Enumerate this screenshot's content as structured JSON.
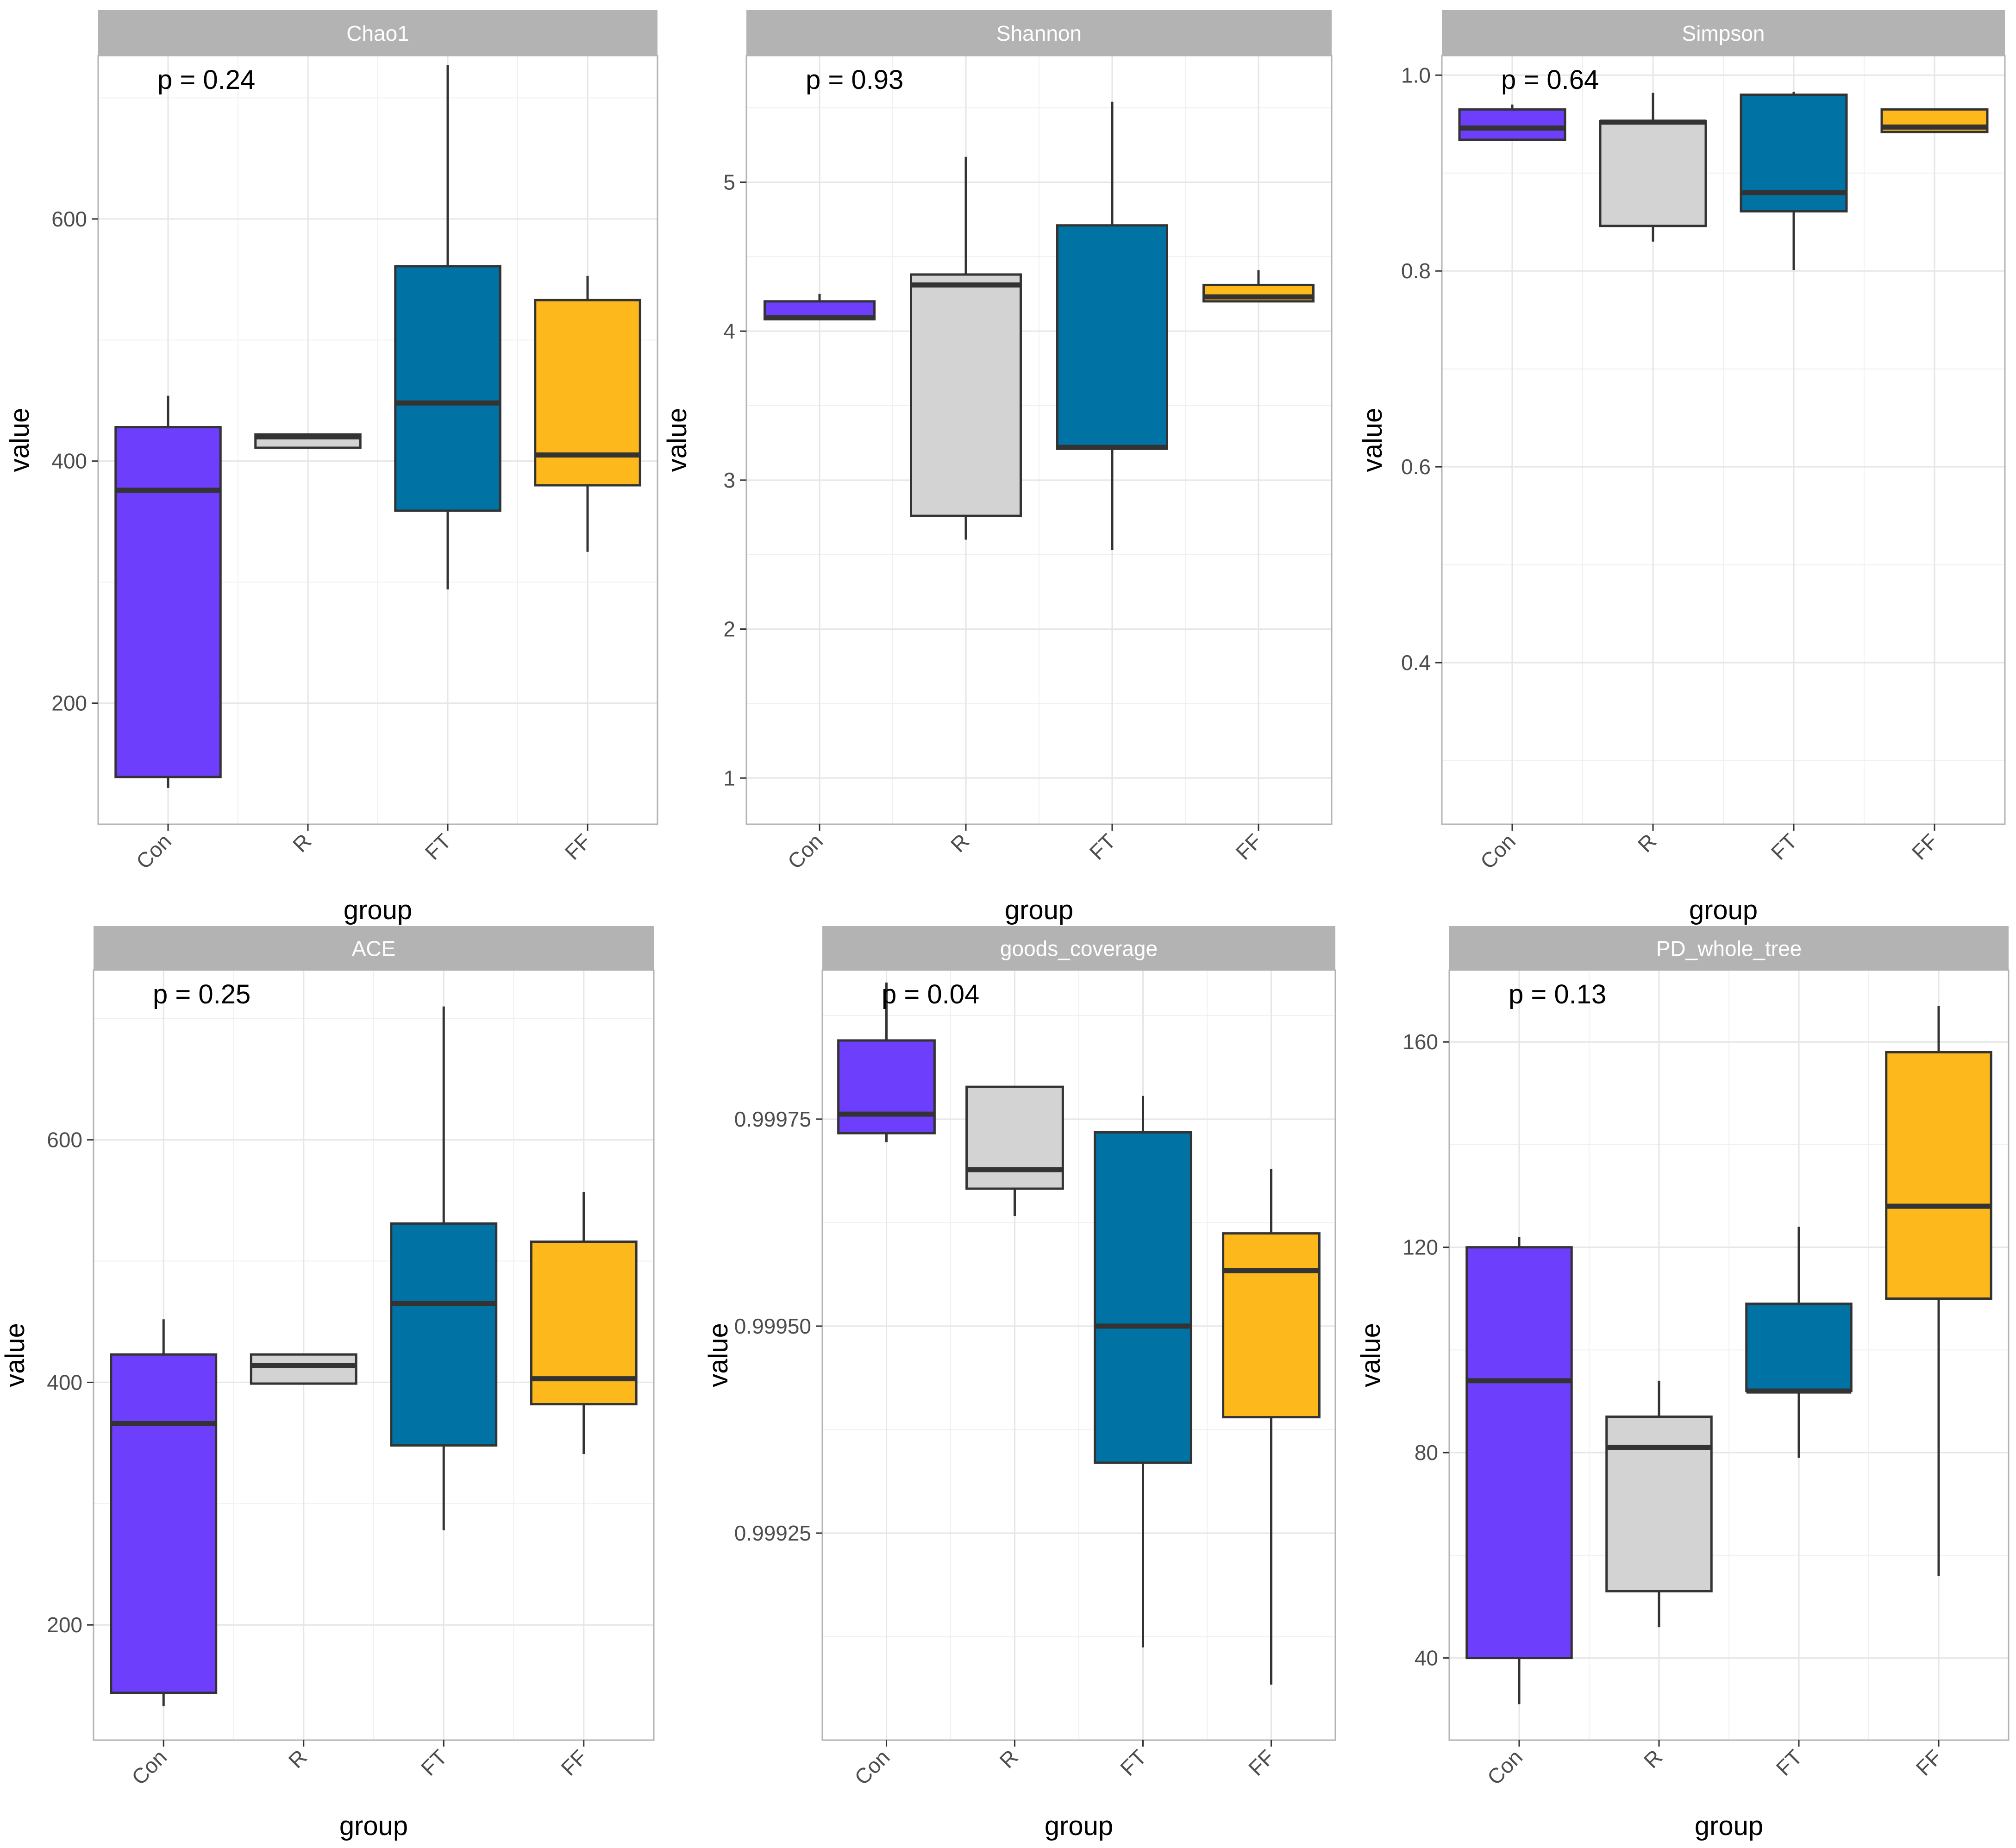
{
  "colors": {
    "Con": "#6d3ffd",
    "R": "#d3d3d3",
    "FT": "#0072a3",
    "FF": "#fdb81b",
    "strip_bg": "#b3b3b3",
    "strip_text": "#ffffff",
    "box_line": "#333333",
    "grid": "#e6e6e6",
    "panel_border": "#b3b3b3"
  },
  "chart_data": [
    {
      "type": "box",
      "title": "Chao1",
      "p_label": "p = 0.24",
      "xlabel": "group",
      "ylabel": "value",
      "categories": [
        "Con",
        "R",
        "FT",
        "FF"
      ],
      "ylim": [
        100,
        735
      ],
      "yticks": [
        200,
        400,
        600
      ],
      "ytick_labels": [
        "200",
        "400",
        "600"
      ],
      "boxes": [
        {
          "group": "Con",
          "min": 130,
          "q1": 139,
          "median": 376,
          "q3": 428,
          "max": 454
        },
        {
          "group": "R",
          "min": 411,
          "q1": 411,
          "median": 420,
          "q3": 422,
          "max": 422
        },
        {
          "group": "FT",
          "min": 294,
          "q1": 359,
          "median": 448,
          "q3": 561,
          "max": 727
        },
        {
          "group": "FF",
          "min": 325,
          "q1": 380,
          "median": 405,
          "q3": 533,
          "max": 553
        }
      ]
    },
    {
      "type": "box",
      "title": "Shannon",
      "p_label": "p = 0.93",
      "xlabel": "group",
      "ylabel": "value",
      "categories": [
        "Con",
        "R",
        "FT",
        "FF"
      ],
      "ylim": [
        0.69,
        5.85
      ],
      "yticks": [
        1,
        2,
        3,
        4,
        5
      ],
      "ytick_labels": [
        "1",
        "2",
        "3",
        "4",
        "5"
      ],
      "boxes": [
        {
          "group": "Con",
          "min": 4.08,
          "q1": 4.08,
          "median": 4.09,
          "q3": 4.2,
          "max": 4.25
        },
        {
          "group": "R",
          "min": 2.6,
          "q1": 2.76,
          "median": 4.31,
          "q3": 4.38,
          "max": 5.17
        },
        {
          "group": "FT",
          "min": 2.53,
          "q1": 3.21,
          "median": 3.22,
          "q3": 4.71,
          "max": 5.54
        },
        {
          "group": "FF",
          "min": 4.2,
          "q1": 4.2,
          "median": 4.23,
          "q3": 4.31,
          "max": 4.41
        }
      ]
    },
    {
      "type": "box",
      "title": "Simpson",
      "p_label": "p = 0.64",
      "xlabel": "group",
      "ylabel": "value",
      "categories": [
        "Con",
        "R",
        "FT",
        "FF"
      ],
      "ylim": [
        0.235,
        1.02
      ],
      "yticks": [
        0.4,
        0.6,
        0.8,
        1.0
      ],
      "ytick_labels": [
        "0.4",
        "0.6",
        "0.8",
        "1.0"
      ],
      "boxes": [
        {
          "group": "Con",
          "min": 0.934,
          "q1": 0.934,
          "median": 0.946,
          "q3": 0.965,
          "max": 0.97
        },
        {
          "group": "R",
          "min": 0.83,
          "q1": 0.846,
          "median": 0.952,
          "q3": 0.953,
          "max": 0.982
        },
        {
          "group": "FT",
          "min": 0.801,
          "q1": 0.861,
          "median": 0.88,
          "q3": 0.98,
          "max": 0.983
        },
        {
          "group": "FF",
          "min": 0.942,
          "q1": 0.942,
          "median": 0.947,
          "q3": 0.965,
          "max": 0.965
        }
      ]
    },
    {
      "type": "box",
      "title": "ACE",
      "p_label": "p = 0.25",
      "xlabel": "group",
      "ylabel": "value",
      "categories": [
        "Con",
        "R",
        "FT",
        "FF"
      ],
      "ylim": [
        105,
        740
      ],
      "yticks": [
        200,
        400,
        600
      ],
      "ytick_labels": [
        "200",
        "400",
        "600"
      ],
      "boxes": [
        {
          "group": "Con",
          "min": 133,
          "q1": 144,
          "median": 366,
          "q3": 423,
          "max": 452
        },
        {
          "group": "R",
          "min": 399,
          "q1": 399,
          "median": 414,
          "q3": 423,
          "max": 423
        },
        {
          "group": "FT",
          "min": 278,
          "q1": 348,
          "median": 465,
          "q3": 531,
          "max": 710
        },
        {
          "group": "FF",
          "min": 341,
          "q1": 382,
          "median": 403,
          "q3": 516,
          "max": 557
        }
      ]
    },
    {
      "type": "box",
      "title": "goods_coverage",
      "p_label": "p = 0.04",
      "xlabel": "group",
      "ylabel": "value",
      "categories": [
        "Con",
        "R",
        "FT",
        "FF"
      ],
      "ylim": [
        0.999,
        0.99993
      ],
      "yticks": [
        0.99925,
        0.9995,
        0.99975
      ],
      "ytick_labels": [
        "0.99925",
        "0.99950",
        "0.99975"
      ],
      "boxes": [
        {
          "group": "Con",
          "min": 0.999722,
          "q1": 0.999733,
          "median": 0.999756,
          "q3": 0.999845,
          "max": 0.999915
        },
        {
          "group": "R",
          "min": 0.999633,
          "q1": 0.999666,
          "median": 0.999689,
          "q3": 0.999789,
          "max": 0.999789
        },
        {
          "group": "FT",
          "min": 0.999112,
          "q1": 0.999335,
          "median": 0.9995,
          "q3": 0.999734,
          "max": 0.999778
        },
        {
          "group": "FF",
          "min": 0.999067,
          "q1": 0.99939,
          "median": 0.999567,
          "q3": 0.999612,
          "max": 0.99969
        }
      ]
    },
    {
      "type": "box",
      "title": "PD_whole_tree",
      "p_label": "p = 0.13",
      "xlabel": "group",
      "ylabel": "value",
      "categories": [
        "Con",
        "R",
        "FT",
        "FF"
      ],
      "ylim": [
        24,
        174
      ],
      "yticks": [
        40,
        80,
        120,
        160
      ],
      "ytick_labels": [
        "40",
        "80",
        "120",
        "160"
      ],
      "boxes": [
        {
          "group": "Con",
          "min": 31,
          "q1": 40,
          "median": 94,
          "q3": 120,
          "max": 122
        },
        {
          "group": "R",
          "min": 46,
          "q1": 53,
          "median": 81,
          "q3": 87,
          "max": 94
        },
        {
          "group": "FT",
          "min": 79,
          "q1": 92,
          "median": 92,
          "q3": 109,
          "max": 124
        },
        {
          "group": "FF",
          "min": 56,
          "q1": 110,
          "median": 128,
          "q3": 158,
          "max": 167
        }
      ]
    }
  ]
}
